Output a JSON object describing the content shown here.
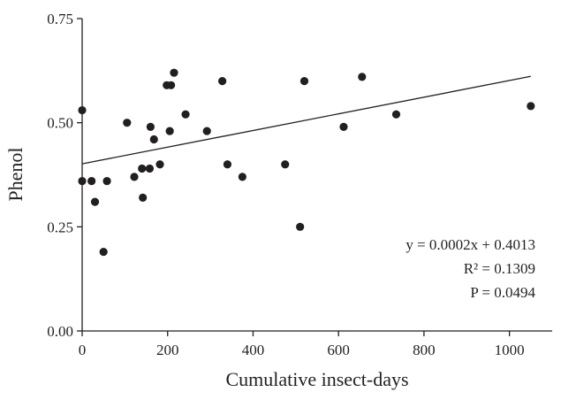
{
  "chart_data": {
    "type": "scatter",
    "title": "",
    "xlabel": "Cumulative insect-days",
    "ylabel": "Phenol",
    "xlim": [
      0,
      1100
    ],
    "ylim": [
      0,
      0.75
    ],
    "xticks": [
      0,
      200,
      400,
      600,
      800,
      1000
    ],
    "xtick_labels": [
      "0",
      "200",
      "400",
      "600",
      "800",
      "1000"
    ],
    "yticks": [
      0,
      0.25,
      0.5,
      0.75
    ],
    "ytick_labels": [
      "0.00",
      "0.25",
      "0.50",
      "0.75"
    ],
    "grid": false,
    "series": [
      {
        "points": [
          [
            0,
            0.36
          ],
          [
            0,
            0.53
          ],
          [
            22,
            0.36
          ],
          [
            30,
            0.31
          ],
          [
            50,
            0.19
          ],
          [
            58,
            0.36
          ],
          [
            105,
            0.5
          ],
          [
            122,
            0.37
          ],
          [
            140,
            0.39
          ],
          [
            142,
            0.32
          ],
          [
            158,
            0.39
          ],
          [
            160,
            0.49
          ],
          [
            168,
            0.46
          ],
          [
            182,
            0.4
          ],
          [
            198,
            0.59
          ],
          [
            205,
            0.48
          ],
          [
            208,
            0.59
          ],
          [
            215,
            0.62
          ],
          [
            242,
            0.52
          ],
          [
            292,
            0.48
          ],
          [
            328,
            0.6
          ],
          [
            340,
            0.4
          ],
          [
            375,
            0.37
          ],
          [
            475,
            0.4
          ],
          [
            510,
            0.25
          ],
          [
            520,
            0.6
          ],
          [
            612,
            0.49
          ],
          [
            655,
            0.61
          ],
          [
            735,
            0.52
          ],
          [
            1050,
            0.54
          ]
        ]
      }
    ],
    "trendline": {
      "slope": 0.0002,
      "intercept": 0.4013,
      "x_range": [
        0,
        1050
      ]
    },
    "annotations": [
      "y = 0.0002x + 0.4013",
      "R² = 0.1309",
      "P = 0.0494"
    ]
  }
}
